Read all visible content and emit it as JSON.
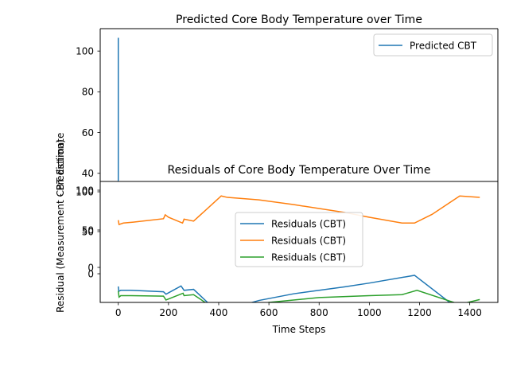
{
  "chart_data": [
    {
      "type": "line",
      "title": "Predicted Core Body Temperature over Time",
      "xlabel": "",
      "ylabel": "CBT Estimate",
      "ylim": [
        36,
        111
      ],
      "yticks": [
        40,
        60,
        80,
        100
      ],
      "legend": "upper-right",
      "series": [
        {
          "name": "Predicted CBT",
          "color": "#1f77b4",
          "points": [
            [
              0,
              106.5
            ],
            [
              0,
              36.5
            ],
            [
              1,
              36.5
            ]
          ]
        }
      ]
    },
    {
      "type": "line",
      "title": "Residuals of Core Body Temperature Over Time",
      "xlabel": "Time Steps",
      "ylabel": "Residual (Measurement - Prediction)",
      "xlim": [
        -72,
        1512
      ],
      "ylim": [
        -11,
        114
      ],
      "xticks": [
        0,
        200,
        400,
        600,
        800,
        1000,
        1200,
        1400
      ],
      "yticks_a": [
        0,
        50,
        100
      ],
      "yticks_b": [
        0,
        50,
        100
      ],
      "legend": "center",
      "series": [
        {
          "name": "Residuals (CBT)",
          "color": "#1f77b4",
          "points": [
            [
              0,
              5.5
            ],
            [
              2,
              0.5
            ],
            [
              10,
              1.5
            ],
            [
              50,
              1.5
            ],
            [
              180,
              0
            ],
            [
              190,
              -2.5
            ],
            [
              250,
              6
            ],
            [
              262,
              1.5
            ],
            [
              300,
              2.5
            ],
            [
              413,
              -25
            ],
            [
              440,
              -18
            ],
            [
              560,
              -9
            ],
            [
              700,
              -2
            ],
            [
              900,
              5
            ],
            [
              1000,
              9
            ],
            [
              1180,
              17
            ],
            [
              1360,
              -19
            ],
            [
              1440,
              -14
            ]
          ]
        },
        {
          "name": "Residuals (CBT)",
          "color": "#ff7f0e",
          "points": [
            [
              0,
              74
            ],
            [
              3,
              69.5
            ],
            [
              20,
              71
            ],
            [
              60,
              72
            ],
            [
              180,
              75.5
            ],
            [
              187,
              79.5
            ],
            [
              200,
              77
            ],
            [
              256,
              71
            ],
            [
              262,
              75
            ],
            [
              300,
              73
            ],
            [
              410,
              99
            ],
            [
              435,
              97.5
            ],
            [
              560,
              95
            ],
            [
              700,
              90
            ],
            [
              900,
              82
            ],
            [
              1000,
              77
            ],
            [
              1130,
              71
            ],
            [
              1180,
              71
            ],
            [
              1250,
              80
            ],
            [
              1360,
              99
            ],
            [
              1440,
              97.5
            ]
          ]
        },
        {
          "name": "Residuals (CBT)",
          "color": "#2ca02c",
          "points": [
            [
              0,
              0.8
            ],
            [
              3,
              -5.5
            ],
            [
              10,
              -4
            ],
            [
              50,
              -4
            ],
            [
              180,
              -4.5
            ],
            [
              190,
              -8.5
            ],
            [
              258,
              -1.5
            ],
            [
              262,
              -4
            ],
            [
              300,
              -3
            ],
            [
              415,
              -23
            ],
            [
              440,
              -17.5
            ],
            [
              600,
              -11
            ],
            [
              800,
              -6
            ],
            [
              1000,
              -4
            ],
            [
              1130,
              -3
            ],
            [
              1190,
              1.5
            ],
            [
              1360,
              -13
            ],
            [
              1440,
              -8
            ]
          ]
        }
      ]
    }
  ]
}
